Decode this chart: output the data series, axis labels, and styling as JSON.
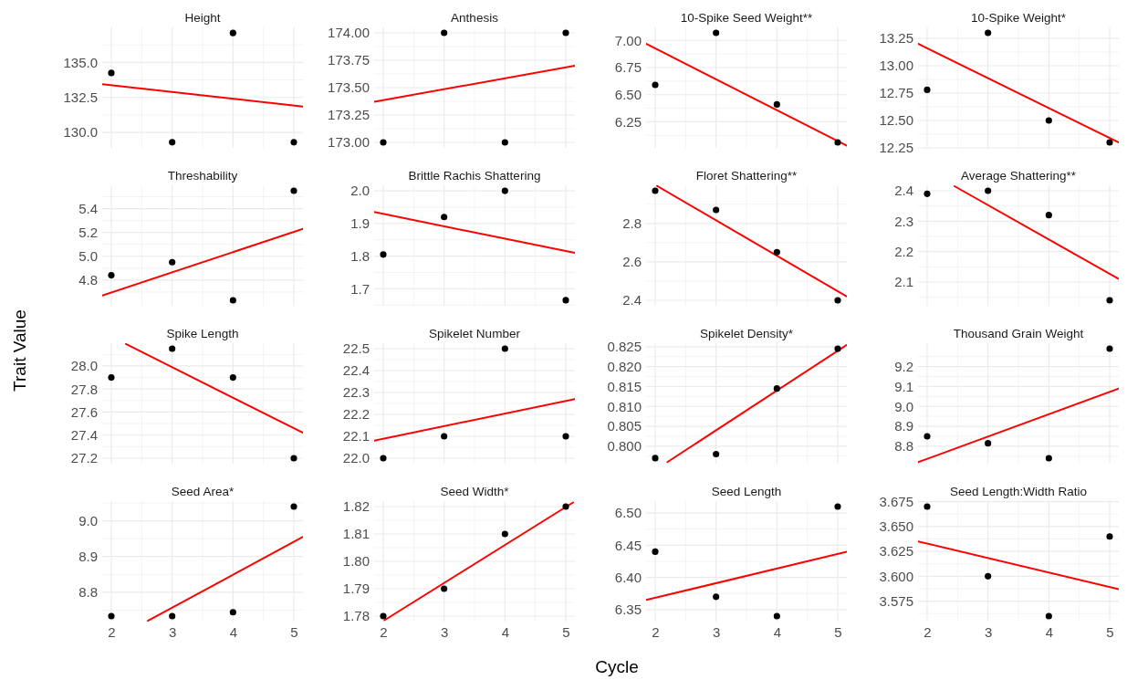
{
  "chart_data": [
    {
      "type": "scatter",
      "title": "Height",
      "grid": true,
      "tick_labels": "y",
      "xlim": [
        1.85,
        5.15
      ],
      "xticks": [
        2,
        3,
        4,
        5,
        {
          "value": 2.5,
          "label": null
        },
        {
          "value": 3.5,
          "label": null
        },
        {
          "value": 4.5,
          "label": null
        }
      ],
      "ylim": [
        128.9,
        137.5
      ],
      "yticks": [
        {
          "value": 130,
          "label": "130.0"
        },
        {
          "value": 132.5,
          "label": "132.5"
        },
        {
          "value": 135,
          "label": "135.0"
        },
        {
          "value": 131.25,
          "label": null
        },
        {
          "value": 133.75,
          "label": null
        },
        {
          "value": 136.25,
          "label": null
        }
      ],
      "series": [
        {
          "type": "scatter",
          "marker": "circle",
          "x": [
            2,
            3,
            4,
            5
          ],
          "values": [
            134.25,
            129.3,
            137.1,
            129.3
          ],
          "color": "#000000"
        },
        {
          "type": "line",
          "x": [
            1.85,
            5.15
          ],
          "values": [
            133.45,
            131.84
          ],
          "color": "#ff0000"
        }
      ]
    },
    {
      "type": "scatter",
      "title": "Anthesis",
      "grid": true,
      "tick_labels": "y",
      "xlim": [
        1.85,
        5.15
      ],
      "xticks": [
        2,
        3,
        4,
        5,
        {
          "value": 2.5,
          "label": null
        },
        {
          "value": 3.5,
          "label": null
        },
        {
          "value": 4.5,
          "label": null
        }
      ],
      "ylim": [
        172.95,
        174.05
      ],
      "yticks": [
        {
          "value": 173,
          "label": "173.00"
        },
        {
          "value": 173.25,
          "label": "173.25"
        },
        {
          "value": 173.5,
          "label": "173.50"
        },
        {
          "value": 173.75,
          "label": "173.75"
        },
        {
          "value": 174,
          "label": "174.00"
        },
        {
          "value": 173.125,
          "label": null
        },
        {
          "value": 173.375,
          "label": null
        },
        {
          "value": 173.625,
          "label": null
        },
        {
          "value": 173.875,
          "label": null
        }
      ],
      "series": [
        {
          "type": "scatter",
          "marker": "circle",
          "x": [
            2,
            3,
            4,
            5
          ],
          "values": [
            173,
            174,
            173,
            174
          ],
          "color": "#000000"
        },
        {
          "type": "line",
          "x": [
            1.85,
            5.15
          ],
          "values": [
            173.37,
            173.7
          ],
          "color": "#ff0000"
        }
      ]
    },
    {
      "type": "scatter",
      "title": "10-Spike Seed Weight**",
      "grid": true,
      "tick_labels": "y",
      "xlim": [
        1.85,
        5.15
      ],
      "xticks": [
        2,
        3,
        4,
        5,
        {
          "value": 2.5,
          "label": null
        },
        {
          "value": 3.5,
          "label": null
        },
        {
          "value": 4.5,
          "label": null
        }
      ],
      "ylim": [
        6.01,
        7.12
      ],
      "yticks": [
        {
          "value": 6.25,
          "label": "6.25"
        },
        {
          "value": 6.5,
          "label": "6.50"
        },
        {
          "value": 6.75,
          "label": "6.75"
        },
        {
          "value": 7,
          "label": "7.00"
        },
        {
          "value": 6.125,
          "label": null
        },
        {
          "value": 6.375,
          "label": null
        },
        {
          "value": 6.625,
          "label": null
        },
        {
          "value": 6.875,
          "label": null
        }
      ],
      "series": [
        {
          "type": "scatter",
          "marker": "circle",
          "x": [
            2,
            3,
            4,
            5
          ],
          "values": [
            6.59,
            7.07,
            6.41,
            6.06
          ],
          "color": "#000000"
        },
        {
          "type": "line",
          "x": [
            1.85,
            5.15
          ],
          "values": [
            6.97,
            6.03
          ],
          "color": "#ff0000"
        }
      ]
    },
    {
      "type": "scatter",
      "title": "10-Spike Weight*",
      "grid": true,
      "tick_labels": "y",
      "xlim": [
        1.85,
        5.15
      ],
      "xticks": [
        2,
        3,
        4,
        5,
        {
          "value": 2.5,
          "label": null
        },
        {
          "value": 3.5,
          "label": null
        },
        {
          "value": 4.5,
          "label": null
        }
      ],
      "ylim": [
        12.25,
        13.35
      ],
      "yticks": [
        {
          "value": 12.25,
          "label": "12.25"
        },
        {
          "value": 12.5,
          "label": "12.50"
        },
        {
          "value": 12.75,
          "label": "12.75"
        },
        {
          "value": 13,
          "label": "13.00"
        },
        {
          "value": 13.25,
          "label": "13.25"
        },
        {
          "value": 12.375,
          "label": null
        },
        {
          "value": 12.625,
          "label": null
        },
        {
          "value": 12.875,
          "label": null
        },
        {
          "value": 13.125,
          "label": null
        }
      ],
      "series": [
        {
          "type": "scatter",
          "marker": "circle",
          "x": [
            2,
            3,
            4,
            5
          ],
          "values": [
            12.78,
            13.3,
            12.5,
            12.3
          ],
          "color": "#000000"
        },
        {
          "type": "line",
          "x": [
            1.85,
            5.15
          ],
          "values": [
            13.2,
            12.3
          ],
          "color": "#ff0000"
        }
      ]
    },
    {
      "type": "scatter",
      "title": "Threshability",
      "grid": true,
      "tick_labels": "y",
      "xlim": [
        1.85,
        5.15
      ],
      "xticks": [
        2,
        3,
        4,
        5,
        {
          "value": 2.5,
          "label": null
        },
        {
          "value": 3.5,
          "label": null
        },
        {
          "value": 4.5,
          "label": null
        }
      ],
      "ylim": [
        4.584,
        5.596
      ],
      "yticks": [
        {
          "value": 4.8,
          "label": "4.8"
        },
        {
          "value": 5,
          "label": "5.0"
        },
        {
          "value": 5.2,
          "label": "5.2"
        },
        {
          "value": 5.4,
          "label": "5.4"
        },
        {
          "value": 4.7,
          "label": null
        },
        {
          "value": 4.9,
          "label": null
        },
        {
          "value": 5.1,
          "label": null
        },
        {
          "value": 5.3,
          "label": null
        },
        {
          "value": 5.5,
          "label": null
        }
      ],
      "series": [
        {
          "type": "scatter",
          "marker": "circle",
          "x": [
            2,
            3,
            4,
            5
          ],
          "values": [
            4.84,
            4.95,
            4.63,
            5.55
          ],
          "color": "#000000"
        },
        {
          "type": "line",
          "x": [
            1.85,
            5.15
          ],
          "values": [
            4.67,
            5.23
          ],
          "color": "#ff0000"
        }
      ]
    },
    {
      "type": "scatter",
      "title": "Brittle Rachis Shattering",
      "grid": true,
      "tick_labels": "y",
      "xlim": [
        1.85,
        5.15
      ],
      "xticks": [
        2,
        3,
        4,
        5,
        {
          "value": 2.5,
          "label": null
        },
        {
          "value": 3.5,
          "label": null
        },
        {
          "value": 4.5,
          "label": null
        }
      ],
      "ylim": [
        1.648,
        2.017
      ],
      "yticks": [
        {
          "value": 1.7,
          "label": "1.7"
        },
        {
          "value": 1.8,
          "label": "1.8"
        },
        {
          "value": 1.9,
          "label": "1.9"
        },
        {
          "value": 2,
          "label": "2.0"
        },
        {
          "value": 1.65,
          "label": null
        },
        {
          "value": 1.75,
          "label": null
        },
        {
          "value": 1.85,
          "label": null
        },
        {
          "value": 1.95,
          "label": null
        }
      ],
      "series": [
        {
          "type": "scatter",
          "marker": "circle",
          "x": [
            2,
            3,
            4,
            5
          ],
          "values": [
            1.805,
            1.92,
            2.0,
            1.665
          ],
          "color": "#000000"
        },
        {
          "type": "line",
          "x": [
            1.85,
            5.15
          ],
          "values": [
            1.935,
            1.81
          ],
          "color": "#ff0000"
        }
      ]
    },
    {
      "type": "scatter",
      "title": "Floret Shattering**",
      "grid": true,
      "tick_labels": "y",
      "xlim": [
        1.85,
        5.15
      ],
      "xticks": [
        2,
        3,
        4,
        5,
        {
          "value": 2.5,
          "label": null
        },
        {
          "value": 3.5,
          "label": null
        },
        {
          "value": 4.5,
          "label": null
        }
      ],
      "ylim": [
        2.3715,
        2.9985
      ],
      "yticks": [
        {
          "value": 2.4,
          "label": "2.4"
        },
        {
          "value": 2.6,
          "label": "2.6"
        },
        {
          "value": 2.8,
          "label": "2.8"
        },
        {
          "value": 2.5,
          "label": null
        },
        {
          "value": 2.7,
          "label": null
        },
        {
          "value": 2.9,
          "label": null
        }
      ],
      "series": [
        {
          "type": "scatter",
          "marker": "circle",
          "x": [
            2,
            3,
            4,
            5
          ],
          "values": [
            2.97,
            2.87,
            2.65,
            2.4
          ],
          "color": "#000000"
        },
        {
          "type": "line",
          "x": [
            2.03,
            5.15
          ],
          "values": [
            2.995,
            2.42
          ],
          "color": "#ff0000"
        }
      ]
    },
    {
      "type": "scatter",
      "title": "Average Shattering**",
      "grid": true,
      "tick_labels": "y",
      "xlim": [
        1.85,
        5.15
      ],
      "xticks": [
        2,
        3,
        4,
        5,
        {
          "value": 2.5,
          "label": null
        },
        {
          "value": 3.5,
          "label": null
        },
        {
          "value": 4.5,
          "label": null
        }
      ],
      "ylim": [
        2.022,
        2.418
      ],
      "yticks": [
        {
          "value": 2.1,
          "label": "2.1"
        },
        {
          "value": 2.2,
          "label": "2.2"
        },
        {
          "value": 2.3,
          "label": "2.3"
        },
        {
          "value": 2.4,
          "label": "2.4"
        },
        {
          "value": 2.05,
          "label": null
        },
        {
          "value": 2.15,
          "label": null
        },
        {
          "value": 2.25,
          "label": null
        },
        {
          "value": 2.35,
          "label": null
        }
      ],
      "series": [
        {
          "type": "scatter",
          "marker": "circle",
          "x": [
            2,
            3,
            4,
            5
          ],
          "values": [
            2.39,
            2.4,
            2.32,
            2.04
          ],
          "color": "#000000"
        },
        {
          "type": "line",
          "x": [
            2.45,
            5.15
          ],
          "values": [
            2.415,
            2.11
          ],
          "color": "#ff0000"
        }
      ]
    },
    {
      "type": "scatter",
      "title": "Spike Length",
      "ylabel": "Trait Value",
      "grid": true,
      "tick_labels": "y",
      "xlim": [
        1.85,
        5.15
      ],
      "xticks": [
        2,
        3,
        4,
        5,
        {
          "value": 2.5,
          "label": null
        },
        {
          "value": 3.5,
          "label": null
        },
        {
          "value": 4.5,
          "label": null
        }
      ],
      "ylim": [
        27.1525,
        28.1975
      ],
      "yticks": [
        {
          "value": 27.2,
          "label": "27.2"
        },
        {
          "value": 27.4,
          "label": "27.4"
        },
        {
          "value": 27.6,
          "label": "27.6"
        },
        {
          "value": 27.8,
          "label": "27.8"
        },
        {
          "value": 28,
          "label": "28.0"
        },
        {
          "value": 27.3,
          "label": null
        },
        {
          "value": 27.5,
          "label": null
        },
        {
          "value": 27.7,
          "label": null
        },
        {
          "value": 27.9,
          "label": null
        },
        {
          "value": 28.1,
          "label": null
        }
      ],
      "series": [
        {
          "type": "scatter",
          "marker": "circle",
          "x": [
            2,
            3,
            4,
            5
          ],
          "values": [
            27.9,
            28.15,
            27.9,
            27.2
          ],
          "color": "#000000"
        },
        {
          "type": "line",
          "x": [
            2.24,
            5.15
          ],
          "values": [
            28.19,
            27.42
          ],
          "color": "#ff0000"
        }
      ]
    },
    {
      "type": "scatter",
      "title": "Spikelet Number",
      "grid": true,
      "tick_labels": "y",
      "xlim": [
        1.85,
        5.15
      ],
      "xticks": [
        2,
        3,
        4,
        5,
        {
          "value": 2.5,
          "label": null
        },
        {
          "value": 3.5,
          "label": null
        },
        {
          "value": 4.5,
          "label": null
        }
      ],
      "ylim": [
        21.975,
        22.525
      ],
      "yticks": [
        {
          "value": 22,
          "label": "22.0"
        },
        {
          "value": 22.1,
          "label": "22.1"
        },
        {
          "value": 22.2,
          "label": "22.2"
        },
        {
          "value": 22.3,
          "label": "22.3"
        },
        {
          "value": 22.4,
          "label": "22.4"
        },
        {
          "value": 22.5,
          "label": "22.5"
        },
        {
          "value": 22.05,
          "label": null
        },
        {
          "value": 22.15,
          "label": null
        },
        {
          "value": 22.25,
          "label": null
        },
        {
          "value": 22.35,
          "label": null
        },
        {
          "value": 22.45,
          "label": null
        }
      ],
      "series": [
        {
          "type": "scatter",
          "marker": "circle",
          "x": [
            2,
            3,
            4,
            5
          ],
          "values": [
            22.0,
            22.1,
            22.5,
            22.1
          ],
          "color": "#000000"
        },
        {
          "type": "line",
          "x": [
            1.85,
            5.15
          ],
          "values": [
            22.08,
            22.27
          ],
          "color": "#ff0000"
        }
      ]
    },
    {
      "type": "scatter",
      "title": "Spikelet Density*",
      "grid": true,
      "tick_labels": "y",
      "xlim": [
        1.85,
        5.15
      ],
      "xticks": [
        2,
        3,
        4,
        5,
        {
          "value": 2.5,
          "label": null
        },
        {
          "value": 3.5,
          "label": null
        },
        {
          "value": 4.5,
          "label": null
        }
      ],
      "ylim": [
        0.7956,
        0.8259
      ],
      "yticks": [
        {
          "value": 0.8,
          "label": "0.800"
        },
        {
          "value": 0.805,
          "label": "0.805"
        },
        {
          "value": 0.81,
          "label": "0.810"
        },
        {
          "value": 0.815,
          "label": "0.815"
        },
        {
          "value": 0.82,
          "label": "0.820"
        },
        {
          "value": 0.825,
          "label": "0.825"
        },
        {
          "value": 0.7975,
          "label": null
        },
        {
          "value": 0.8025,
          "label": null
        },
        {
          "value": 0.8075,
          "label": null
        },
        {
          "value": 0.8125,
          "label": null
        },
        {
          "value": 0.8175,
          "label": null
        },
        {
          "value": 0.8225,
          "label": null
        }
      ],
      "series": [
        {
          "type": "scatter",
          "marker": "circle",
          "x": [
            2,
            3,
            4,
            5
          ],
          "values": [
            0.797,
            0.798,
            0.8145,
            0.8245
          ],
          "color": "#000000"
        },
        {
          "type": "line",
          "x": [
            2.2,
            5.15
          ],
          "values": [
            0.796,
            0.8255
          ],
          "color": "#ff0000"
        }
      ]
    },
    {
      "type": "scatter",
      "title": "Thousand Grain Weight",
      "grid": true,
      "tick_labels": "y",
      "xlim": [
        1.85,
        5.15
      ],
      "xticks": [
        2,
        3,
        4,
        5,
        {
          "value": 2.5,
          "label": null
        },
        {
          "value": 3.5,
          "label": null
        },
        {
          "value": 4.5,
          "label": null
        }
      ],
      "ylim": [
        8.7125,
        9.3175
      ],
      "yticks": [
        {
          "value": 8.8,
          "label": "8.8"
        },
        {
          "value": 8.9,
          "label": "8.9"
        },
        {
          "value": 9,
          "label": "9.0"
        },
        {
          "value": 9.1,
          "label": "9.1"
        },
        {
          "value": 9.2,
          "label": "9.2"
        },
        {
          "value": 8.75,
          "label": null
        },
        {
          "value": 8.85,
          "label": null
        },
        {
          "value": 8.95,
          "label": null
        },
        {
          "value": 9.05,
          "label": null
        },
        {
          "value": 9.15,
          "label": null
        },
        {
          "value": 9.25,
          "label": null
        }
      ],
      "series": [
        {
          "type": "scatter",
          "marker": "circle",
          "x": [
            2,
            3,
            4,
            5
          ],
          "values": [
            8.85,
            8.815,
            8.74,
            9.29
          ],
          "color": "#000000"
        },
        {
          "type": "line",
          "x": [
            1.85,
            5.15
          ],
          "values": [
            8.72,
            9.09
          ],
          "color": "#ff0000"
        }
      ]
    },
    {
      "type": "scatter",
      "title": "Seed Area*",
      "grid": true,
      "xlim": [
        1.85,
        5.15
      ],
      "xticks": [
        2,
        3,
        4,
        5,
        {
          "value": 2.5,
          "label": null
        },
        {
          "value": 3.5,
          "label": null
        },
        {
          "value": 4.5,
          "label": null
        }
      ],
      "ylim": [
        8.7177,
        9.0553
      ],
      "yticks": [
        {
          "value": 8.8,
          "label": "8.8"
        },
        {
          "value": 8.9,
          "label": "8.9"
        },
        {
          "value": 9,
          "label": "9.0"
        },
        {
          "value": 8.75,
          "label": null
        },
        {
          "value": 8.85,
          "label": null
        },
        {
          "value": 8.95,
          "label": null
        },
        {
          "value": 9.05,
          "label": null
        }
      ],
      "series": [
        {
          "type": "scatter",
          "marker": "circle",
          "x": [
            2,
            3,
            4,
            5
          ],
          "values": [
            8.733,
            8.733,
            8.744,
            9.04
          ],
          "color": "#000000"
        },
        {
          "type": "line",
          "x": [
            2.6,
            5.15
          ],
          "values": [
            8.72,
            8.955
          ],
          "color": "#ff0000"
        }
      ]
    },
    {
      "type": "scatter",
      "title": "Seed Width*",
      "grid": true,
      "xlim": [
        1.85,
        5.15
      ],
      "xticks": [
        2,
        3,
        4,
        5,
        {
          "value": 2.5,
          "label": null
        },
        {
          "value": 3.5,
          "label": null
        },
        {
          "value": 4.5,
          "label": null
        }
      ],
      "ylim": [
        1.778,
        1.822
      ],
      "yticks": [
        {
          "value": 1.78,
          "label": "1.78"
        },
        {
          "value": 1.79,
          "label": "1.79"
        },
        {
          "value": 1.8,
          "label": "1.80"
        },
        {
          "value": 1.81,
          "label": "1.81"
        },
        {
          "value": 1.82,
          "label": "1.82"
        },
        {
          "value": 1.785,
          "label": null
        },
        {
          "value": 1.795,
          "label": null
        },
        {
          "value": 1.805,
          "label": null
        },
        {
          "value": 1.815,
          "label": null
        }
      ],
      "series": [
        {
          "type": "scatter",
          "marker": "circle",
          "x": [
            2,
            3,
            4,
            5
          ],
          "values": [
            1.78,
            1.79,
            1.81,
            1.82
          ],
          "color": "#000000"
        },
        {
          "type": "line",
          "x": [
            2.02,
            5.12
          ],
          "values": [
            1.7785,
            1.8215
          ],
          "color": "#ff0000"
        }
      ]
    },
    {
      "type": "scatter",
      "title": "Seed Length",
      "xlabel": "Cycle",
      "grid": true,
      "xlim": [
        1.85,
        5.15
      ],
      "xticks": [
        2,
        3,
        4,
        5,
        {
          "value": 2.5,
          "label": null
        },
        {
          "value": 3.5,
          "label": null
        },
        {
          "value": 4.5,
          "label": null
        }
      ],
      "ylim": [
        6.3315,
        6.5185
      ],
      "yticks": [
        {
          "value": 6.35,
          "label": "6.35"
        },
        {
          "value": 6.4,
          "label": "6.40"
        },
        {
          "value": 6.45,
          "label": "6.45"
        },
        {
          "value": 6.5,
          "label": "6.50"
        },
        {
          "value": 6.375,
          "label": null
        },
        {
          "value": 6.425,
          "label": null
        },
        {
          "value": 6.475,
          "label": null
        }
      ],
      "series": [
        {
          "type": "scatter",
          "marker": "circle",
          "x": [
            2,
            3,
            4,
            5
          ],
          "values": [
            6.44,
            6.37,
            6.34,
            6.51
          ],
          "color": "#000000"
        },
        {
          "type": "line",
          "x": [
            1.85,
            5.15
          ],
          "values": [
            6.365,
            6.44
          ],
          "color": "#ff0000"
        }
      ]
    },
    {
      "type": "scatter",
      "title": "Seed Length:Width Ratio",
      "grid": true,
      "xlim": [
        1.85,
        5.15
      ],
      "xticks": [
        2,
        3,
        4,
        5,
        {
          "value": 2.5,
          "label": null
        },
        {
          "value": 3.5,
          "label": null
        },
        {
          "value": 4.5,
          "label": null
        }
      ],
      "ylim": [
        3.5545,
        3.6755
      ],
      "yticks": [
        {
          "value": 3.575,
          "label": "3.575"
        },
        {
          "value": 3.6,
          "label": "3.600"
        },
        {
          "value": 3.625,
          "label": "3.625"
        },
        {
          "value": 3.65,
          "label": "3.650"
        },
        {
          "value": 3.675,
          "label": "3.675"
        },
        {
          "value": 3.5625,
          "label": null
        },
        {
          "value": 3.5875,
          "label": null
        },
        {
          "value": 3.6125,
          "label": null
        },
        {
          "value": 3.6375,
          "label": null
        },
        {
          "value": 3.6625,
          "label": null
        }
      ],
      "series": [
        {
          "type": "scatter",
          "marker": "circle",
          "x": [
            2,
            3,
            4,
            5
          ],
          "values": [
            3.67,
            3.6,
            3.56,
            3.64
          ],
          "color": "#000000"
        },
        {
          "type": "line",
          "x": [
            1.85,
            5.15
          ],
          "values": [
            3.635,
            3.587
          ],
          "color": "#ff0000"
        }
      ]
    }
  ]
}
